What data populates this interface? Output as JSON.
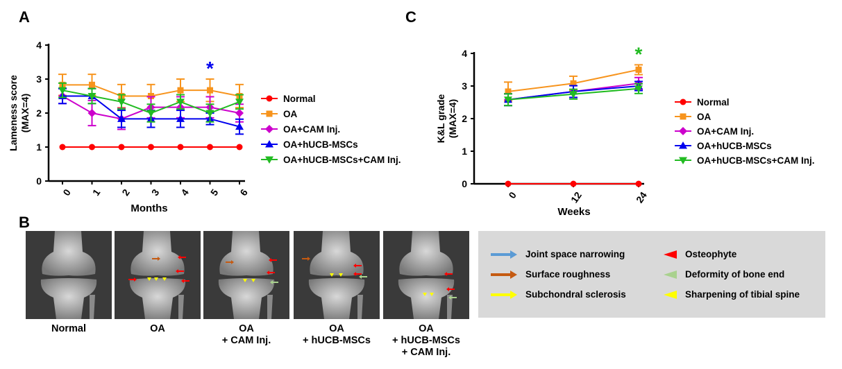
{
  "panels": {
    "a": "A",
    "b": "B",
    "c": "C"
  },
  "chart_data": [
    {
      "type": "line",
      "panel": "A",
      "xlabel": "Months",
      "ylabel": "Lameness score",
      "ylabel2": "(MAX=4)",
      "x": [
        0,
        1,
        2,
        3,
        4,
        5,
        6
      ],
      "ylim": [
        0,
        4
      ],
      "yticks": [
        0,
        1,
        2,
        3,
        4
      ],
      "series": [
        {
          "name": "Normal",
          "color": "#ff0000",
          "marker": "circle",
          "values": [
            1,
            1,
            1,
            1,
            1,
            1,
            1
          ],
          "err": [
            0,
            0,
            0,
            0,
            0,
            0,
            0
          ]
        },
        {
          "name": "OA",
          "color": "#f7941d",
          "marker": "square",
          "values": [
            2.83,
            2.83,
            2.5,
            2.5,
            2.67,
            2.67,
            2.5
          ],
          "err": [
            0.31,
            0.31,
            0.34,
            0.34,
            0.33,
            0.33,
            0.34
          ]
        },
        {
          "name": "OA+CAM Inj.",
          "color": "#cc00cc",
          "marker": "diamond",
          "values": [
            2.5,
            2.0,
            1.83,
            2.17,
            2.17,
            2.17,
            2.0
          ],
          "err": [
            0.22,
            0.37,
            0.31,
            0.31,
            0.31,
            0.31,
            0.26
          ]
        },
        {
          "name": "OA+hUCB-MSCs",
          "color": "#0000ee",
          "marker": "triangle-up",
          "values": [
            2.5,
            2.5,
            1.83,
            1.83,
            1.83,
            1.83,
            1.6
          ],
          "err": [
            0.22,
            0.22,
            0.25,
            0.25,
            0.25,
            0.17,
            0.22
          ]
        },
        {
          "name": "OA+hUCB-MSCs+CAM Inj.",
          "color": "#22bb22",
          "marker": "triangle-down",
          "values": [
            2.67,
            2.5,
            2.33,
            2.0,
            2.33,
            2.0,
            2.33
          ],
          "err": [
            0.21,
            0.22,
            0.21,
            0.26,
            0.21,
            0.26,
            0.21
          ]
        }
      ],
      "annotations": [
        {
          "x": 5,
          "text": "*",
          "color": "#0000ee"
        }
      ]
    },
    {
      "type": "line",
      "panel": "C",
      "xlabel": "Weeks",
      "ylabel": "K&L grade",
      "ylabel2": "(MAX=4)",
      "x": [
        0,
        12,
        24
      ],
      "ylim": [
        0,
        4
      ],
      "yticks": [
        0,
        1,
        2,
        3,
        4
      ],
      "series": [
        {
          "name": "Normal",
          "color": "#ff0000",
          "marker": "circle",
          "values": [
            0,
            0,
            0
          ],
          "err": [
            0,
            0,
            0
          ]
        },
        {
          "name": "OA",
          "color": "#f7941d",
          "marker": "square",
          "values": [
            2.83,
            3.08,
            3.5
          ],
          "err": [
            0.29,
            0.22,
            0.15
          ]
        },
        {
          "name": "OA+CAM Inj.",
          "color": "#cc00cc",
          "marker": "diamond",
          "values": [
            2.58,
            2.83,
            3.08
          ],
          "err": [
            0.18,
            0.18,
            0.18
          ]
        },
        {
          "name": "OA+hUCB-MSCs",
          "color": "#0000ee",
          "marker": "triangle-up",
          "values": [
            2.58,
            2.83,
            3.0
          ],
          "err": [
            0.18,
            0.18,
            0.14
          ]
        },
        {
          "name": "OA+hUCB-MSCs+CAM Inj.",
          "color": "#22bb22",
          "marker": "triangle-down",
          "values": [
            2.58,
            2.75,
            2.92
          ],
          "err": [
            0.18,
            0.15,
            0.15
          ]
        }
      ],
      "annotations": [
        {
          "x": 24,
          "text": "*",
          "color": "#22bb22"
        }
      ]
    }
  ],
  "xray_labels": [
    [
      "Normal"
    ],
    [
      "OA"
    ],
    [
      "OA",
      "+ CAM Inj."
    ],
    [
      "OA",
      "+ hUCB-MSCs"
    ],
    [
      "OA",
      "+ hUCB-MSCs",
      "+ CAM Inj."
    ]
  ],
  "key": {
    "left": [
      {
        "label": "Joint space narrowing",
        "color": "#5b9bd5",
        "kind": "arrow"
      },
      {
        "label": "Surface roughness",
        "color": "#c55a11",
        "kind": "arrow"
      },
      {
        "label": "Subchondral sclerosis",
        "color": "#ffff00",
        "kind": "arrow"
      }
    ],
    "right": [
      {
        "label": "Osteophyte",
        "color": "#ff0000",
        "kind": "triangle"
      },
      {
        "label": "Deformity of bone end",
        "color": "#a9d18e",
        "kind": "triangle"
      },
      {
        "label": "Sharpening of tibial spine",
        "color": "#ffff00",
        "kind": "triangle"
      }
    ]
  }
}
